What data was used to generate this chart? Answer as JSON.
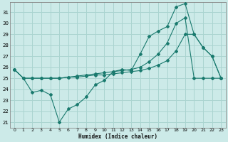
{
  "xlabel": "Humidex (Indice chaleur)",
  "background_color": "#cceae8",
  "grid_color": "#aad4d0",
  "line_color": "#1a7a6e",
  "xlim": [
    -0.5,
    23.5
  ],
  "ylim": [
    20.5,
    31.9
  ],
  "yticks": [
    21,
    22,
    23,
    24,
    25,
    26,
    27,
    28,
    29,
    30,
    31
  ],
  "xticks": [
    0,
    1,
    2,
    3,
    4,
    5,
    6,
    7,
    8,
    9,
    10,
    11,
    12,
    13,
    14,
    15,
    16,
    17,
    18,
    19,
    20,
    21,
    22,
    23
  ],
  "series1_x": [
    0,
    1,
    2,
    3,
    4,
    5,
    6,
    7,
    8,
    9,
    10,
    11,
    12,
    13,
    14,
    15,
    16,
    17,
    18,
    19,
    20,
    21,
    22,
    23
  ],
  "series1_y": [
    25.8,
    25.0,
    23.7,
    23.9,
    23.5,
    21.0,
    22.2,
    22.6,
    23.3,
    24.4,
    24.8,
    25.6,
    25.8,
    25.7,
    27.2,
    28.8,
    29.3,
    29.7,
    31.5,
    31.8,
    29.0,
    27.8,
    27.0,
    25.0
  ],
  "series2_x": [
    0,
    1,
    2,
    3,
    4,
    5,
    6,
    7,
    8,
    9,
    10,
    11,
    12,
    13,
    14,
    15,
    16,
    17,
    18,
    19,
    20,
    21,
    22,
    23
  ],
  "series2_y": [
    25.8,
    25.0,
    25.0,
    25.0,
    25.0,
    25.0,
    25.1,
    25.1,
    25.2,
    25.3,
    25.3,
    25.4,
    25.5,
    25.6,
    25.7,
    25.9,
    26.2,
    26.6,
    27.5,
    29.0,
    29.0,
    27.8,
    27.0,
    25.0
  ],
  "series3_x": [
    0,
    1,
    2,
    3,
    4,
    5,
    6,
    7,
    8,
    9,
    10,
    11,
    12,
    13,
    14,
    15,
    16,
    17,
    18,
    19,
    20,
    21,
    22,
    23
  ],
  "series3_y": [
    25.8,
    25.0,
    25.0,
    25.0,
    25.0,
    25.0,
    25.1,
    25.2,
    25.3,
    25.4,
    25.5,
    25.6,
    25.7,
    25.8,
    26.0,
    26.5,
    27.2,
    28.2,
    30.0,
    30.5,
    25.0,
    25.0,
    25.0,
    25.0
  ]
}
